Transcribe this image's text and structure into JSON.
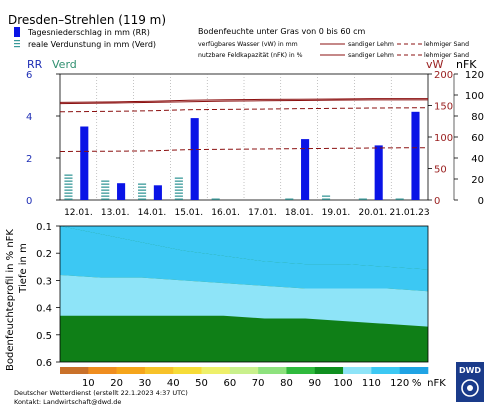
{
  "station": "Dresden–Strehlen (119 m)",
  "legend_left": {
    "precip": "Tagesniederschlag in mm (RR)",
    "evap": "reale Verdunstung in mm (Verd)"
  },
  "legend_right": {
    "title": "Bodenfeuchte unter Gras von 0 bis 60 cm",
    "vw": "verfügbares Wasser (vW) in mm",
    "nfk": "nutzbare Feldkapazität (nFK) in %",
    "sandy": "sandiger Lehm",
    "loamy": "lehmiger Sand"
  },
  "colors": {
    "precip": "#0a14e6",
    "evap": "#3a9a9a",
    "sandy": "#8b1010",
    "loamy": "#8b1010",
    "axis_left": "#1f2fb5",
    "axis_right": "#9a2020",
    "axis_green": "#2f8f6f",
    "profile_dark": "#0f7f17",
    "profile_light": "#8ee4f8",
    "profile_mid": "#3cc8f3"
  },
  "chart_data": [
    {
      "type": "bar",
      "name": "top",
      "axis_label_left": "RR",
      "axis_label_left2": "Verd",
      "axis_label_right": "vW",
      "axis_label_right2": "nFK",
      "categories": [
        "12.01.",
        "13.01.",
        "14.01.",
        "15.01.",
        "16.01.",
        "17.01.",
        "18.01.",
        "19.01.",
        "20.01.",
        "21.01.23"
      ],
      "ylim_left": [
        0,
        6
      ],
      "yticks_left": [
        0,
        2,
        4,
        6
      ],
      "ylim_vw": [
        0,
        200
      ],
      "yticks_vw": [
        0,
        50,
        100,
        150,
        200
      ],
      "ylim_nfk": [
        0,
        120
      ],
      "yticks_nfk": [
        0,
        20,
        40,
        60,
        80,
        100,
        120
      ],
      "precip": [
        3.5,
        0.8,
        0.7,
        3.9,
        0,
        0,
        2.9,
        0,
        2.6,
        4.2
      ],
      "evap": [
        1.3,
        1.0,
        0.8,
        1.1,
        0.1,
        0.05,
        0.2,
        0.3,
        0.1,
        0.2
      ],
      "sandy_nfk": [
        93,
        93.5,
        94,
        95,
        95.5,
        95.8,
        96,
        96.2,
        96.5,
        96.5
      ],
      "sandy_vw": [
        153,
        154,
        155,
        156,
        157,
        157.5,
        158,
        158.5,
        159,
        159
      ],
      "loamy_nfk": [
        84,
        84.5,
        85,
        86,
        86.3,
        86.6,
        87,
        87.3,
        87.6,
        87.8
      ],
      "loamy_vw": [
        77,
        77.5,
        78,
        80,
        80.5,
        81,
        81.5,
        82,
        82.5,
        83
      ]
    },
    {
      "type": "area",
      "name": "profile",
      "ylabel": "Bodenfeuchteprofil in % nFK",
      "ylabel2": "Tiefe in m",
      "ylim": [
        0.1,
        0.6
      ],
      "yticks": [
        0.1,
        0.2,
        0.3,
        0.4,
        0.5,
        0.6
      ],
      "boundary_upper": [
        0.1,
        0.13,
        0.16,
        0.19,
        0.21,
        0.23,
        0.24,
        0.24,
        0.25,
        0.26
      ],
      "boundary_lower": [
        0.28,
        0.29,
        0.29,
        0.3,
        0.31,
        0.32,
        0.33,
        0.33,
        0.33,
        0.34
      ],
      "boundary_dark": [
        0.43,
        0.43,
        0.43,
        0.43,
        0.43,
        0.44,
        0.44,
        0.45,
        0.46,
        0.47
      ]
    }
  ],
  "colorbar": {
    "labels": [
      "10",
      "20",
      "30",
      "40",
      "50",
      "60",
      "70",
      "80",
      "90",
      "100",
      "110",
      "120",
      "%",
      "nFK"
    ],
    "colors": [
      "#c9712a",
      "#ef8d1f",
      "#f5a51b",
      "#f7c229",
      "#f6dc38",
      "#eef06a",
      "#c9f08c",
      "#8ee27e",
      "#2fba3d",
      "#0f8f1f",
      "#8ee4f8",
      "#3cc8f3",
      "#1fa3e4"
    ]
  },
  "footer": {
    "line1": "Deutscher Wetterdienst (erstellt 22.1.2023 4:37 UTC)",
    "line2": "Kontakt: Landwirtschaft@dwd.de"
  },
  "logo_text": "DWD"
}
